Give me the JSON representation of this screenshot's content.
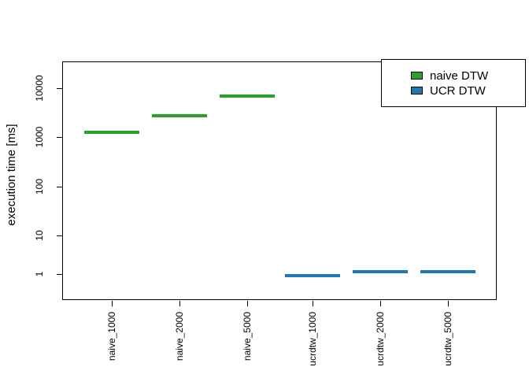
{
  "chart_data": {
    "type": "boxplot",
    "title": "",
    "ylabel": "execution time [ms]",
    "xlabel": "",
    "yscale": "log",
    "ytick_labels": [
      "1",
      "10",
      "100",
      "1000",
      "10000"
    ],
    "ytick_values": [
      1,
      10,
      100,
      1000,
      10000
    ],
    "categories": [
      "naive_1000",
      "naive_2000",
      "naive_5000",
      "ucrdtw_1000",
      "ucrdtw_2000",
      "ucrdtw_5000"
    ],
    "values_ms": [
      1250,
      2750,
      6800,
      0.9,
      1.15,
      1.15
    ],
    "series": [
      {
        "name": "naive DTW",
        "color": "#2ca02c",
        "categories": [
          "naive_1000",
          "naive_2000",
          "naive_5000"
        ],
        "values": [
          1250,
          2750,
          6800
        ]
      },
      {
        "name": "UCR DTW",
        "color": "#1f77b4",
        "categories": [
          "ucrdtw_1000",
          "ucrdtw_2000",
          "ucrdtw_5000"
        ],
        "values": [
          0.9,
          1.15,
          1.15
        ]
      }
    ],
    "legend": {
      "position": "top-right",
      "entries": [
        {
          "label": "naive DTW",
          "color": "#2ca02c"
        },
        {
          "label": "UCR DTW",
          "color": "#1f77b4"
        }
      ]
    },
    "grid": false,
    "plot_background": "#ffffff"
  }
}
